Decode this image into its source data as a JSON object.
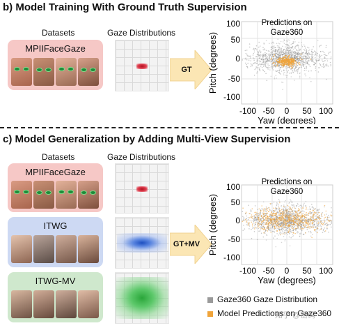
{
  "section_b": {
    "title": "b) Model Training With Ground Truth Supervision",
    "datasets_label": "Datasets",
    "gaze_label": "Gaze Distributions",
    "datasets": [
      {
        "name": "MPIIFaceGaze",
        "color": "#f6c8c6"
      }
    ],
    "arrow_label": "GT",
    "plot": {
      "title_line1": "Predictions on",
      "title_line2": "Gaze360",
      "xlabel": "Yaw (degrees)",
      "ylabel": "Pitch (degrees)",
      "xticks": [
        "-100",
        "-50",
        "0",
        "50",
        "100"
      ],
      "yticks": [
        "100",
        "50",
        "0",
        "-50",
        "-100"
      ]
    }
  },
  "section_c": {
    "title": "c) Model Generalization by Adding Multi-View Supervision",
    "datasets_label": "Datasets",
    "gaze_label": "Gaze Distributions",
    "datasets": [
      {
        "name": "MPIIFaceGaze",
        "color": "#f6c8c6"
      },
      {
        "name": "ITWG",
        "color": "#cdd9f3"
      },
      {
        "name": "ITWG-MV",
        "color": "#cfe8cd"
      }
    ],
    "arrow_label": "GT+MV",
    "plot": {
      "title_line1": "Predictions on",
      "title_line2": "Gaze360",
      "xlabel": "Yaw (degrees)",
      "ylabel": "Pitch (degrees)",
      "xticks": [
        "-100",
        "-50",
        "0",
        "50",
        "100"
      ],
      "yticks": [
        "100",
        "50",
        "0",
        "-50",
        "-100"
      ]
    }
  },
  "legend": {
    "items": [
      {
        "label": "Gaze360 Gaze Distribution",
        "color": "#9a9a9a"
      },
      {
        "label": "Model Predictions on Gaze360",
        "color": "#f0a43a"
      }
    ]
  },
  "watermark": "知乎 @密码"
}
